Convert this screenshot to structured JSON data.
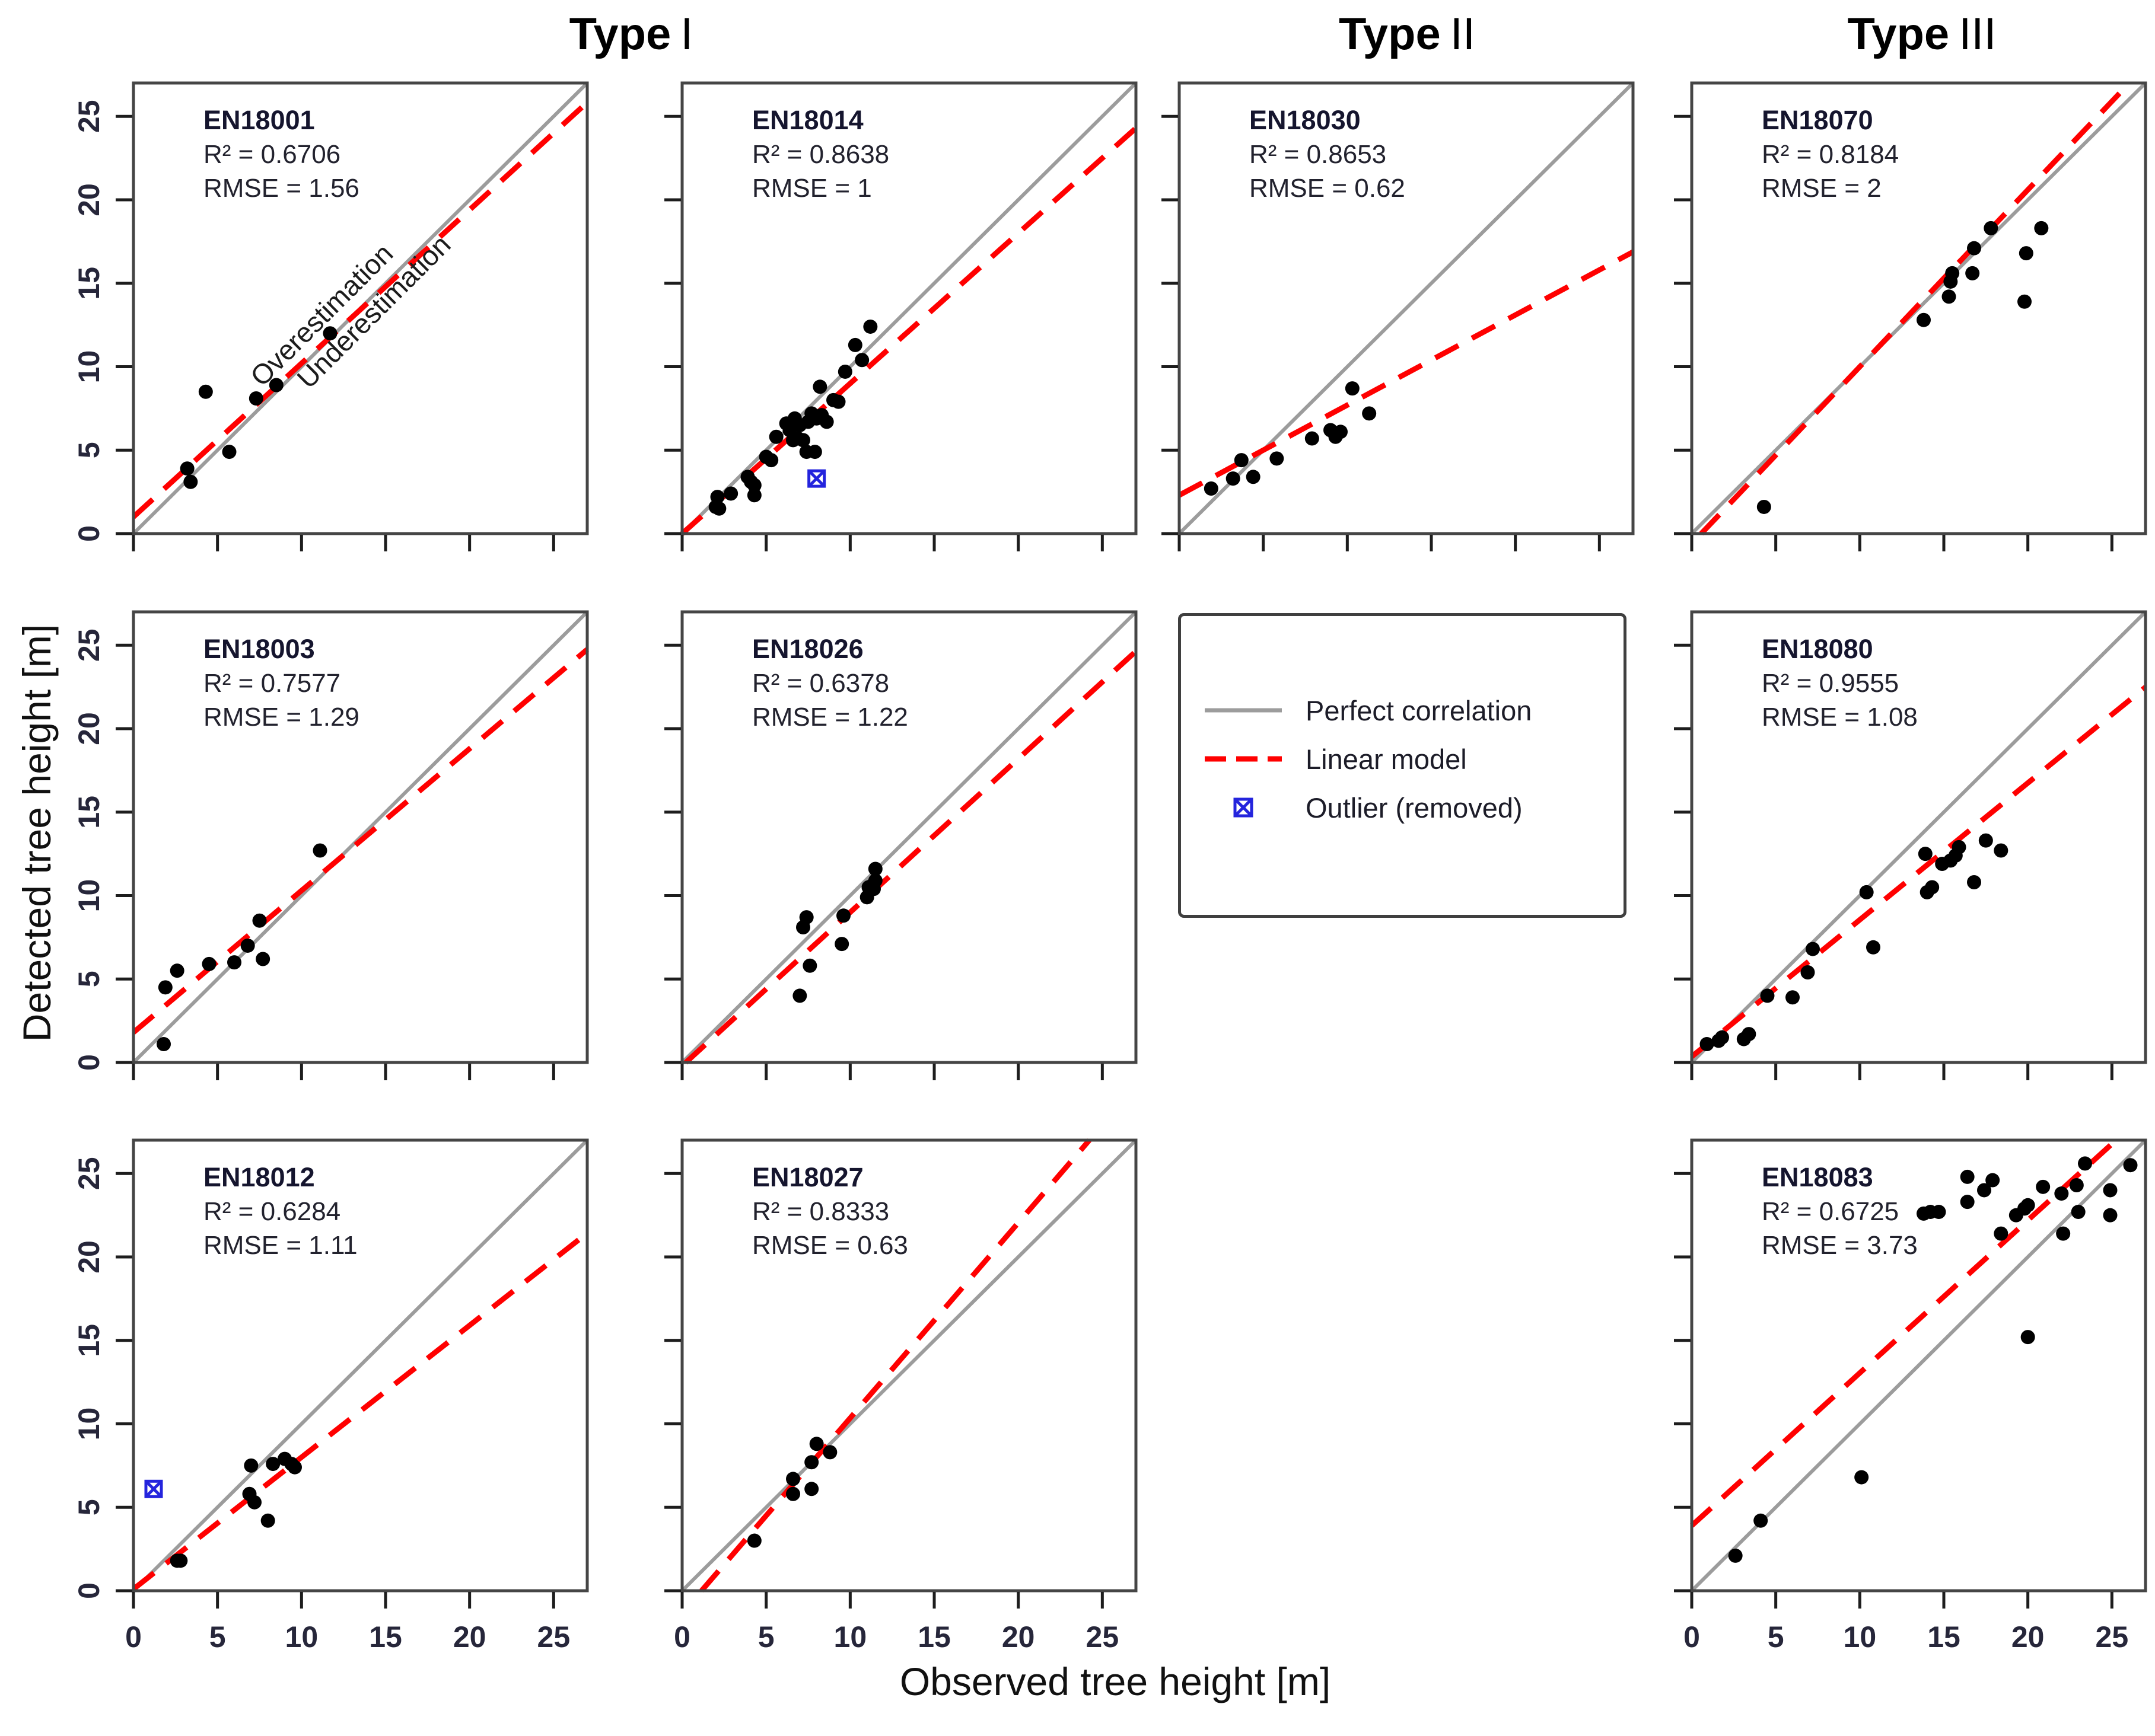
{
  "figure": {
    "headers": [
      {
        "word": "Type",
        "numeral": "I"
      },
      {
        "word": "Type",
        "numeral": "II"
      },
      {
        "word": "Type",
        "numeral": "III"
      }
    ],
    "x_axis_title": "Observed tree height [m]",
    "y_axis_title": "Detected tree height [m]"
  },
  "legend": {
    "items": [
      {
        "label": "Perfect correlation",
        "marker": "solid-line",
        "color": "#9c9c9c"
      },
      {
        "label": "Linear model",
        "marker": "dashed-line",
        "color": "#ff0000"
      },
      {
        "label": "Outlier (removed)",
        "marker": "outlier-cross",
        "color": "#2424dd"
      }
    ]
  },
  "chart_data": {
    "type": "scatter",
    "xlabel": "Observed tree height [m]",
    "ylabel": "Detected tree height [m]",
    "axis_range": [
      0,
      27
    ],
    "ticks": [
      0,
      5,
      10,
      15,
      20,
      25
    ],
    "grid": false,
    "r2_prefix": "R² =  ",
    "rmse_prefix": "RMSE =  ",
    "colors": {
      "identity": "#9c9c9c",
      "fit": "#ff0000",
      "point": "#000000",
      "outlier": "#2424dd"
    },
    "panels": [
      {
        "id": "EN18001",
        "r2": "0.6706",
        "rmse": "1.56",
        "row": 0,
        "col": 0,
        "show_x_labels": false,
        "show_y_labels": true,
        "fit": {
          "intercept": 1.0,
          "slope": 0.92
        },
        "points": [
          [
            3.2,
            3.9
          ],
          [
            3.4,
            3.1
          ],
          [
            4.3,
            8.5
          ],
          [
            5.7,
            4.9
          ],
          [
            7.3,
            8.1
          ],
          [
            8.5,
            8.9
          ],
          [
            11.7,
            12.0
          ]
        ],
        "outliers": [],
        "annotations": [
          {
            "text": "Overestimation",
            "x": 11.6,
            "y": 12.7,
            "rotate": -45
          },
          {
            "text": "Underestimation",
            "x": 14.7,
            "y": 12.9,
            "rotate": -45
          }
        ]
      },
      {
        "id": "EN18014",
        "r2": "0.8638",
        "rmse": "1",
        "row": 0,
        "col": 1,
        "show_x_labels": false,
        "show_y_labels": false,
        "fit": {
          "intercept": 0.0,
          "slope": 0.9
        },
        "points": [
          [
            2.0,
            1.6
          ],
          [
            2.1,
            2.2
          ],
          [
            2.2,
            1.5
          ],
          [
            2.9,
            2.4
          ],
          [
            3.9,
            3.4
          ],
          [
            4.1,
            3.1
          ],
          [
            4.3,
            2.9
          ],
          [
            4.3,
            2.3
          ],
          [
            5.0,
            4.6
          ],
          [
            5.3,
            4.4
          ],
          [
            5.6,
            5.8
          ],
          [
            6.2,
            6.6
          ],
          [
            6.4,
            6.2
          ],
          [
            6.6,
            5.6
          ],
          [
            6.9,
            5.7
          ],
          [
            7.2,
            5.6
          ],
          [
            6.7,
            6.9
          ],
          [
            7.0,
            6.5
          ],
          [
            7.4,
            4.9
          ],
          [
            7.9,
            4.9
          ],
          [
            7.5,
            6.7
          ],
          [
            7.7,
            7.2
          ],
          [
            8.0,
            6.9
          ],
          [
            8.3,
            7.1
          ],
          [
            8.6,
            6.7
          ],
          [
            9.0,
            8.0
          ],
          [
            9.3,
            7.9
          ],
          [
            8.2,
            8.8
          ],
          [
            9.7,
            9.7
          ],
          [
            10.3,
            11.3
          ],
          [
            10.7,
            10.4
          ],
          [
            11.2,
            12.4
          ]
        ],
        "outliers": [
          [
            8.0,
            3.3
          ]
        ],
        "annotations": []
      },
      {
        "id": "EN18030",
        "r2": "0.8653",
        "rmse": "0.62",
        "row": 0,
        "col": 2,
        "show_x_labels": false,
        "show_y_labels": false,
        "fit": {
          "intercept": 2.3,
          "slope": 0.54
        },
        "points": [
          [
            1.9,
            2.7
          ],
          [
            3.2,
            3.3
          ],
          [
            3.7,
            4.4
          ],
          [
            4.4,
            3.4
          ],
          [
            5.8,
            4.5
          ],
          [
            7.9,
            5.7
          ],
          [
            9.0,
            6.2
          ],
          [
            9.3,
            5.8
          ],
          [
            9.6,
            6.1
          ],
          [
            10.3,
            8.7
          ],
          [
            11.3,
            7.2
          ]
        ],
        "outliers": [],
        "annotations": []
      },
      {
        "id": "EN18070",
        "r2": "0.8184",
        "rmse": "2",
        "row": 0,
        "col": 3,
        "show_x_labels": false,
        "show_y_labels": false,
        "fit": {
          "intercept": -0.6,
          "slope": 1.06
        },
        "points": [
          [
            4.3,
            1.6
          ],
          [
            13.8,
            12.8
          ],
          [
            15.3,
            14.2
          ],
          [
            15.4,
            15.1
          ],
          [
            15.5,
            15.6
          ],
          [
            16.7,
            15.6
          ],
          [
            16.8,
            17.1
          ],
          [
            17.8,
            18.3
          ],
          [
            19.8,
            13.9
          ],
          [
            19.9,
            16.8
          ],
          [
            20.8,
            18.3
          ]
        ],
        "outliers": [],
        "annotations": []
      },
      {
        "id": "EN18003",
        "r2": "0.7577",
        "rmse": "1.29",
        "row": 1,
        "col": 0,
        "show_x_labels": false,
        "show_y_labels": true,
        "fit": {
          "intercept": 1.8,
          "slope": 0.85
        },
        "points": [
          [
            1.8,
            1.1
          ],
          [
            1.9,
            4.5
          ],
          [
            2.6,
            5.5
          ],
          [
            4.5,
            5.9
          ],
          [
            6.0,
            6.0
          ],
          [
            6.8,
            7.0
          ],
          [
            7.5,
            8.5
          ],
          [
            7.7,
            6.2
          ],
          [
            11.1,
            12.7
          ]
        ],
        "outliers": [],
        "annotations": []
      },
      {
        "id": "EN18026",
        "r2": "0.6378",
        "rmse": "1.22",
        "row": 1,
        "col": 1,
        "show_x_labels": false,
        "show_y_labels": false,
        "fit": {
          "intercept": -0.2,
          "slope": 0.92
        },
        "points": [
          [
            7.0,
            4.0
          ],
          [
            7.6,
            5.8
          ],
          [
            7.2,
            8.1
          ],
          [
            7.4,
            8.7
          ],
          [
            9.5,
            7.1
          ],
          [
            9.6,
            8.8
          ],
          [
            11.0,
            9.9
          ],
          [
            11.1,
            10.5
          ],
          [
            11.3,
            10.6
          ],
          [
            11.4,
            10.4
          ],
          [
            11.5,
            10.9
          ],
          [
            11.5,
            11.6
          ]
        ],
        "outliers": [],
        "annotations": []
      },
      {
        "id": "EN18080",
        "r2": "0.9555",
        "rmse": "1.08",
        "row": 1,
        "col": 3,
        "show_x_labels": false,
        "show_y_labels": false,
        "fit": {
          "intercept": 0.35,
          "slope": 0.82
        },
        "points": [
          [
            0.9,
            1.1
          ],
          [
            1.6,
            1.3
          ],
          [
            1.8,
            1.5
          ],
          [
            3.1,
            1.4
          ],
          [
            3.4,
            1.7
          ],
          [
            4.5,
            4.0
          ],
          [
            6.0,
            3.9
          ],
          [
            6.9,
            5.4
          ],
          [
            7.2,
            6.8
          ],
          [
            10.4,
            10.2
          ],
          [
            10.8,
            6.9
          ],
          [
            13.9,
            12.5
          ],
          [
            14.0,
            10.2
          ],
          [
            14.3,
            10.5
          ],
          [
            14.9,
            11.9
          ],
          [
            15.4,
            12.1
          ],
          [
            15.7,
            12.4
          ],
          [
            15.9,
            12.9
          ],
          [
            16.8,
            10.8
          ],
          [
            17.5,
            13.3
          ],
          [
            18.4,
            12.7
          ]
        ],
        "outliers": [],
        "annotations": []
      },
      {
        "id": "EN18012",
        "r2": "0.6284",
        "rmse": "1.11",
        "row": 2,
        "col": 0,
        "show_x_labels": true,
        "show_y_labels": true,
        "fit": {
          "intercept": 0.1,
          "slope": 0.79
        },
        "points": [
          [
            2.6,
            1.8
          ],
          [
            2.8,
            1.8
          ],
          [
            6.9,
            5.8
          ],
          [
            7.0,
            7.5
          ],
          [
            7.2,
            5.3
          ],
          [
            8.0,
            4.2
          ],
          [
            8.3,
            7.6
          ],
          [
            9.0,
            7.9
          ],
          [
            9.4,
            7.6
          ],
          [
            9.6,
            7.4
          ]
        ],
        "outliers": [
          [
            1.2,
            6.1
          ]
        ],
        "annotations": []
      },
      {
        "id": "EN18027",
        "r2": "0.8333",
        "rmse": "0.63",
        "row": 2,
        "col": 1,
        "show_x_labels": true,
        "show_y_labels": false,
        "fit": {
          "intercept": -1.35,
          "slope": 1.17
        },
        "points": [
          [
            4.3,
            3.0
          ],
          [
            6.6,
            6.7
          ],
          [
            6.6,
            5.8
          ],
          [
            7.7,
            6.1
          ],
          [
            7.7,
            7.7
          ],
          [
            8.0,
            8.8
          ],
          [
            8.8,
            8.3
          ]
        ],
        "outliers": [],
        "annotations": []
      },
      {
        "id": "EN18083",
        "r2": "0.6725",
        "rmse": "3.73",
        "row": 2,
        "col": 3,
        "show_x_labels": true,
        "show_y_labels": false,
        "fit": {
          "intercept": 3.9,
          "slope": 0.915
        },
        "points": [
          [
            2.6,
            2.1
          ],
          [
            4.1,
            4.2
          ],
          [
            10.1,
            6.8
          ],
          [
            13.8,
            22.6
          ],
          [
            14.2,
            22.7
          ],
          [
            14.7,
            22.7
          ],
          [
            16.4,
            24.8
          ],
          [
            16.4,
            23.3
          ],
          [
            17.4,
            24.0
          ],
          [
            17.9,
            24.6
          ],
          [
            18.4,
            21.4
          ],
          [
            19.3,
            22.5
          ],
          [
            19.8,
            22.9
          ],
          [
            20.0,
            23.1
          ],
          [
            20.0,
            15.2
          ],
          [
            20.9,
            24.2
          ],
          [
            22.0,
            23.8
          ],
          [
            22.1,
            21.4
          ],
          [
            22.9,
            24.3
          ],
          [
            23.0,
            22.7
          ],
          [
            23.4,
            25.6
          ],
          [
            24.9,
            24.0
          ],
          [
            24.9,
            22.5
          ],
          [
            26.1,
            25.5
          ]
        ],
        "outliers": [],
        "annotations": []
      }
    ]
  }
}
